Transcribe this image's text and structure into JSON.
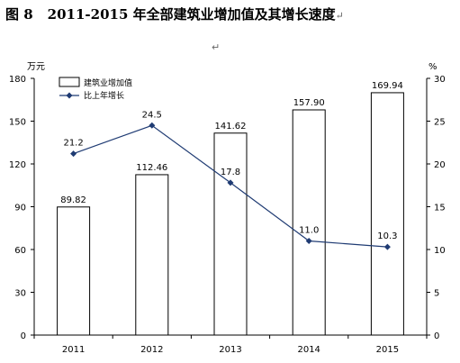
{
  "figure_label": "图 8",
  "title_text": "2011-2015 年全部建筑业增加值及其增长速度",
  "para_mark": "↵",
  "chart_data": {
    "type": "bar+line",
    "categories": [
      "2011",
      "2012",
      "2013",
      "2014",
      "2015"
    ],
    "series": [
      {
        "name": "建筑业增加值",
        "type": "bar",
        "axis": "left",
        "values": [
          89.82,
          112.46,
          141.62,
          157.9,
          169.94
        ],
        "labels": [
          "89.82",
          "112.46",
          "141.62",
          "157.90",
          "169.94"
        ]
      },
      {
        "name": "比上年增长",
        "type": "line",
        "axis": "right",
        "values": [
          21.2,
          24.5,
          17.8,
          11.0,
          10.3
        ],
        "labels": [
          "21.2",
          "24.5",
          "17.8",
          "11.0",
          "10.3"
        ]
      }
    ],
    "y_left": {
      "unit": "万元",
      "ylim": [
        0,
        180
      ],
      "ticks": [
        "0",
        "30",
        "60",
        "90",
        "120",
        "150",
        "180"
      ]
    },
    "y_right": {
      "unit": "%",
      "ylim": [
        0,
        30
      ],
      "ticks": [
        "0",
        "5",
        "10",
        "15",
        "20",
        "25",
        "30"
      ]
    },
    "grid": false,
    "legend": "top-left",
    "colors": {
      "bar_fill": "#ffffff",
      "bar_stroke": "#000000",
      "line": "#1f3b73",
      "marker": "#1f3b73",
      "axis": "#000000"
    }
  }
}
